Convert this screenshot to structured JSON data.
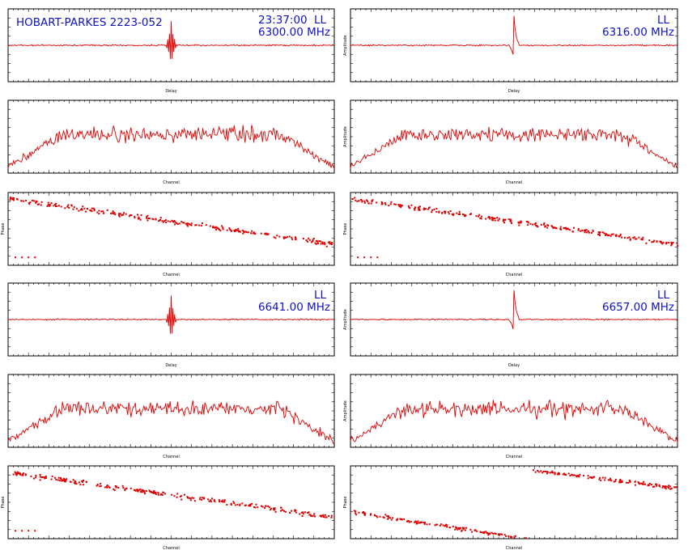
{
  "header": {
    "source": "HOBART-PARKES 2223-052",
    "time": "23:37:00",
    "polarization": "LL"
  },
  "panels": [
    {
      "freq": "6300.00 MHz",
      "pol": "LL"
    },
    {
      "freq": "6316.00 MHz",
      "pol": "LL"
    },
    {
      "freq": "6641.00 MHz",
      "pol": "LL"
    },
    {
      "freq": "6657.00 MHz",
      "pol": "LL"
    }
  ],
  "colors": {
    "trace": "#dd0000",
    "annotation": "#1010c8",
    "axes": "#000000"
  },
  "chart_data": [
    {
      "id": "delay-6300",
      "type": "line",
      "xlabel": "Delay",
      "ylabel": "",
      "xlim": [
        -256,
        256
      ],
      "peak_x": 0,
      "shape": "sharp fringe peak at zero delay"
    },
    {
      "id": "delay-6316",
      "type": "line",
      "xlabel": "Delay",
      "ylabel": "Amplitude",
      "xlim": [
        -256,
        256
      ],
      "peak_x": 0,
      "shape": "sharp fringe peak at zero delay"
    },
    {
      "id": "amp-6300",
      "type": "line",
      "xlabel": "Channel",
      "ylabel": "",
      "xlim": [
        0,
        512
      ],
      "shape": "noisy bandpass, lower at both band edges"
    },
    {
      "id": "amp-6316",
      "type": "line",
      "xlabel": "Channel",
      "ylabel": "Amplitude",
      "xlim": [
        0,
        512
      ],
      "shape": "noisy bandpass, lower at both band edges"
    },
    {
      "id": "phase-6300",
      "type": "scatter",
      "xlabel": "Channel",
      "ylabel": "Phase",
      "xlim": [
        0,
        256
      ],
      "trend": "decreasing phase slope"
    },
    {
      "id": "phase-6316",
      "type": "scatter",
      "xlabel": "Channel",
      "ylabel": "Phase",
      "xlim": [
        0,
        256
      ],
      "trend": "decreasing phase slope"
    },
    {
      "id": "delay-6641",
      "type": "line",
      "xlabel": "Delay",
      "ylabel": "",
      "xlim": [
        -256,
        256
      ],
      "peak_x": 0,
      "shape": "sharp fringe peak at zero delay"
    },
    {
      "id": "delay-6657",
      "type": "line",
      "xlabel": "Delay",
      "ylabel": "Amplitude",
      "xlim": [
        -256,
        256
      ],
      "peak_x": 0,
      "shape": "sharp fringe peak at zero delay"
    },
    {
      "id": "amp-6641",
      "type": "line",
      "xlabel": "Channel",
      "ylabel": "",
      "xlim": [
        0,
        512
      ],
      "shape": "noisy bandpass, lower at both band edges"
    },
    {
      "id": "amp-6657",
      "type": "line",
      "xlabel": "Channel",
      "ylabel": "Amplitude",
      "xlim": [
        0,
        512
      ],
      "shape": "noisy bandpass, lower at both band edges"
    },
    {
      "id": "phase-6641",
      "type": "scatter",
      "xlabel": "Channel",
      "ylabel": "Phase",
      "xlim": [
        0,
        256
      ],
      "trend": "decreasing phase slope"
    },
    {
      "id": "phase-6657",
      "type": "scatter",
      "xlabel": "Channel",
      "ylabel": "Phase",
      "xlim": [
        0,
        256
      ],
      "trend": "decreasing phase slope with 2π wrap"
    }
  ]
}
